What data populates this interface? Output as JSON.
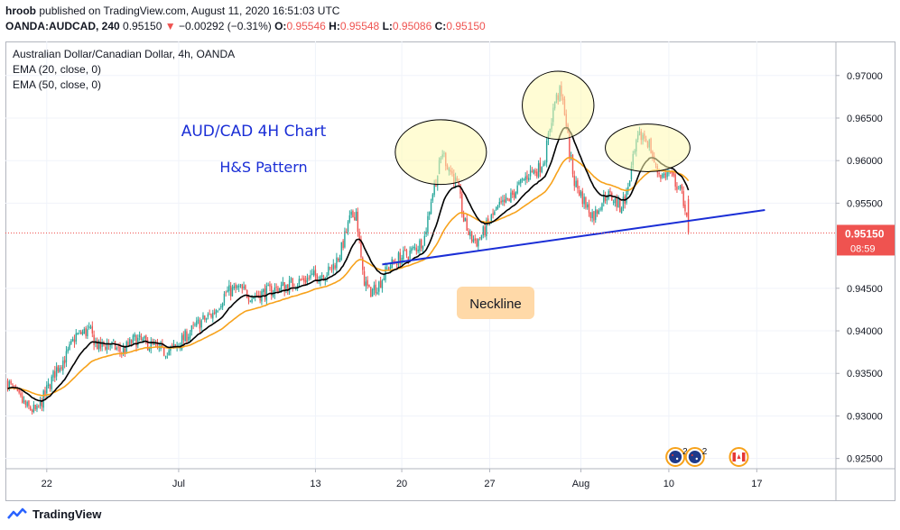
{
  "header": {
    "author": "hroob",
    "published_text": "published on TradingView.com, August 11, 2020 16:51:03 UTC",
    "symbol": "OANDA:AUDCAD, 240",
    "last_price": "0.95150",
    "change_arrow": "▼",
    "change": "−0.00292 (−0.31%)",
    "o_label": "O:",
    "o_value": "0.95546",
    "h_label": "H:",
    "h_value": "0.95548",
    "l_label": "L:",
    "l_value": "0.95086",
    "c_label": "C:",
    "c_value": "0.95150"
  },
  "legend": {
    "title": "Australian Dollar/Canadian Dollar, 4h, OANDA",
    "ema20": "EMA (20, close, 0)",
    "ema50": "EMA (50, close, 0)"
  },
  "footer": {
    "brand": "TradingView"
  },
  "colors": {
    "up": "#26a69a",
    "down": "#ef5350",
    "ema20": "#000000",
    "ema50": "#f7a21b",
    "neckline": "#1a2ed6",
    "annotation_text": "#1a2ed6",
    "price_badge": "#ef5350",
    "callout_bg": "#ffd9a8",
    "circle_fill": "#fff9b0"
  },
  "chart_data": {
    "type": "candlestick",
    "title": "",
    "annotations": {
      "title_text": "AUD/CAD 4H Chart",
      "pattern_text": "H&S Pattern",
      "neckline_callout": "Neckline"
    },
    "y_axis": {
      "min": 0.9238,
      "max": 0.974,
      "ticks": [
        "0.97000",
        "0.96500",
        "0.96000",
        "0.95500",
        "0.94500",
        "0.94000",
        "0.93500",
        "0.93000",
        "0.92500"
      ],
      "tick_values": [
        0.97,
        0.965,
        0.96,
        0.955,
        0.945,
        0.94,
        0.935,
        0.93,
        0.925
      ]
    },
    "x_axis": {
      "labels": [
        "22",
        "Jul",
        "13",
        "20",
        "27",
        "Aug",
        "10",
        "17"
      ],
      "label_bar_index": [
        24,
        105,
        189,
        242,
        296,
        352,
        406,
        460
      ]
    },
    "current_price": {
      "label": "0.95150",
      "countdown": "08:59",
      "value": 0.9515
    },
    "last_bar_index": 418,
    "keypoints": [
      {
        "i": 0,
        "v": 0.934
      },
      {
        "i": 5,
        "v": 0.9325
      },
      {
        "i": 12,
        "v": 0.931
      },
      {
        "i": 18,
        "v": 0.9305
      },
      {
        "i": 24,
        "v": 0.933
      },
      {
        "i": 30,
        "v": 0.9355
      },
      {
        "i": 36,
        "v": 0.937
      },
      {
        "i": 42,
        "v": 0.9395
      },
      {
        "i": 50,
        "v": 0.94
      },
      {
        "i": 56,
        "v": 0.938
      },
      {
        "i": 62,
        "v": 0.9385
      },
      {
        "i": 70,
        "v": 0.9375
      },
      {
        "i": 78,
        "v": 0.939
      },
      {
        "i": 86,
        "v": 0.9385
      },
      {
        "i": 95,
        "v": 0.9375
      },
      {
        "i": 103,
        "v": 0.938
      },
      {
        "i": 110,
        "v": 0.9395
      },
      {
        "i": 118,
        "v": 0.941
      },
      {
        "i": 126,
        "v": 0.942
      },
      {
        "i": 134,
        "v": 0.9445
      },
      {
        "i": 142,
        "v": 0.945
      },
      {
        "i": 150,
        "v": 0.944
      },
      {
        "i": 158,
        "v": 0.9445
      },
      {
        "i": 166,
        "v": 0.945
      },
      {
        "i": 174,
        "v": 0.9455
      },
      {
        "i": 182,
        "v": 0.946
      },
      {
        "i": 190,
        "v": 0.9465
      },
      {
        "i": 198,
        "v": 0.947
      },
      {
        "i": 204,
        "v": 0.949
      },
      {
        "i": 210,
        "v": 0.953
      },
      {
        "i": 214,
        "v": 0.954
      },
      {
        "i": 218,
        "v": 0.9465
      },
      {
        "i": 222,
        "v": 0.9445
      },
      {
        "i": 228,
        "v": 0.9455
      },
      {
        "i": 234,
        "v": 0.9475
      },
      {
        "i": 240,
        "v": 0.9485
      },
      {
        "i": 246,
        "v": 0.949
      },
      {
        "i": 252,
        "v": 0.95
      },
      {
        "i": 256,
        "v": 0.951
      },
      {
        "i": 260,
        "v": 0.9555
      },
      {
        "i": 264,
        "v": 0.9585
      },
      {
        "i": 267,
        "v": 0.961
      },
      {
        "i": 270,
        "v": 0.9595
      },
      {
        "i": 274,
        "v": 0.958
      },
      {
        "i": 277,
        "v": 0.9565
      },
      {
        "i": 280,
        "v": 0.953
      },
      {
        "i": 284,
        "v": 0.951
      },
      {
        "i": 288,
        "v": 0.9505
      },
      {
        "i": 292,
        "v": 0.9515
      },
      {
        "i": 296,
        "v": 0.953
      },
      {
        "i": 302,
        "v": 0.9545
      },
      {
        "i": 308,
        "v": 0.9555
      },
      {
        "i": 314,
        "v": 0.957
      },
      {
        "i": 320,
        "v": 0.9585
      },
      {
        "i": 326,
        "v": 0.959
      },
      {
        "i": 330,
        "v": 0.9605
      },
      {
        "i": 333,
        "v": 0.964
      },
      {
        "i": 336,
        "v": 0.967
      },
      {
        "i": 339,
        "v": 0.968
      },
      {
        "i": 342,
        "v": 0.966
      },
      {
        "i": 345,
        "v": 0.961
      },
      {
        "i": 348,
        "v": 0.9575
      },
      {
        "i": 352,
        "v": 0.956
      },
      {
        "i": 356,
        "v": 0.9545
      },
      {
        "i": 360,
        "v": 0.9535
      },
      {
        "i": 364,
        "v": 0.955
      },
      {
        "i": 368,
        "v": 0.956
      },
      {
        "i": 372,
        "v": 0.9555
      },
      {
        "i": 376,
        "v": 0.9545
      },
      {
        "i": 380,
        "v": 0.956
      },
      {
        "i": 384,
        "v": 0.96
      },
      {
        "i": 387,
        "v": 0.9625
      },
      {
        "i": 390,
        "v": 0.963
      },
      {
        "i": 394,
        "v": 0.962
      },
      {
        "i": 398,
        "v": 0.959
      },
      {
        "i": 402,
        "v": 0.9582
      },
      {
        "i": 406,
        "v": 0.9585
      },
      {
        "i": 410,
        "v": 0.9575
      },
      {
        "i": 414,
        "v": 0.956
      },
      {
        "i": 416,
        "v": 0.9545
      },
      {
        "i": 418,
        "v": 0.9515
      }
    ],
    "neckline": {
      "from": {
        "i": 230,
        "v": 0.9478
      },
      "to": {
        "i": 465,
        "v": 0.9542
      }
    },
    "head_shoulder_circles": [
      {
        "i": 266,
        "v": 0.961,
        "ri": 14,
        "rv": 0.0038
      },
      {
        "i": 338,
        "v": 0.9665,
        "ri": 11,
        "rv": 0.004
      },
      {
        "i": 393,
        "v": 0.9615,
        "ri": 13,
        "rv": 0.0028
      }
    ],
    "event_icons": [
      {
        "i": 410,
        "badge": "2",
        "kind": "au"
      },
      {
        "i": 422,
        "badge": "2",
        "kind": "au"
      },
      {
        "i": 449,
        "badge": "",
        "kind": "ca"
      }
    ]
  }
}
